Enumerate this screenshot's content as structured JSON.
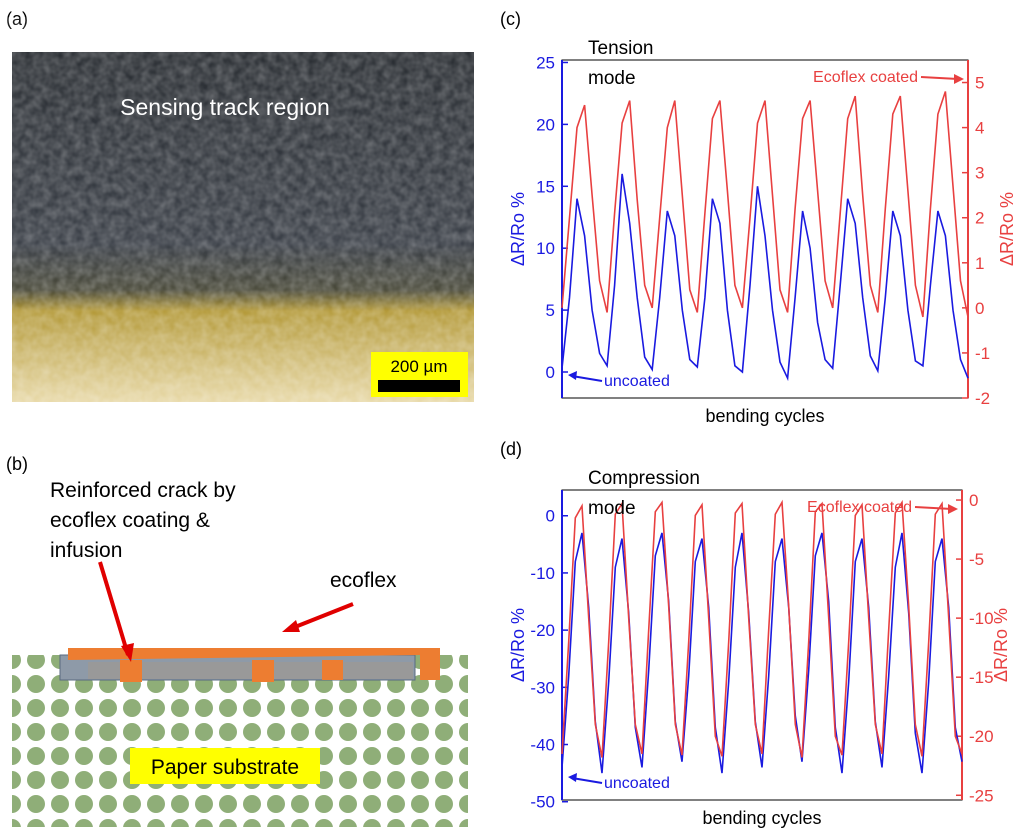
{
  "panels": {
    "a": {
      "label": "(a)",
      "caption": "Sensing track region",
      "scale_bar": "200 µm"
    },
    "b": {
      "label": "(b)",
      "annotation_lines": [
        "Reinforced crack by",
        "ecoflex coating &",
        "infusion"
      ],
      "ecoflex_label": "ecoflex",
      "substrate_label": "Paper substrate"
    }
  },
  "chart_data": [
    {
      "type": "line",
      "panel_label": "(c)",
      "annotation_lines": [
        "Tension",
        "mode"
      ],
      "xlabel": "bending cycles",
      "ylabel": "ΔR/Ro %",
      "y2label": "ΔR/Ro %",
      "ylim": [
        -2.1,
        25.2
      ],
      "yticks": [
        0,
        5,
        10,
        15,
        20,
        25
      ],
      "y2lim": [
        -2,
        5.5
      ],
      "y2ticks": [
        -2,
        -1,
        0,
        1,
        2,
        3,
        4,
        5
      ],
      "series": [
        {
          "name": "uncoated",
          "color": "#1a1ae0",
          "values": [
            0.3,
            6,
            14,
            11,
            5,
            1.5,
            0.5,
            7,
            16,
            12,
            6,
            1.2,
            0.2,
            6,
            13,
            11,
            5,
            1,
            0.4,
            6,
            14,
            12,
            5,
            0.5,
            0,
            7,
            15,
            11,
            5,
            0.8,
            -0.5,
            6,
            13,
            10,
            4,
            1,
            0.3,
            7,
            14,
            12,
            6,
            1.3,
            0.1,
            6,
            13,
            11,
            5,
            0.9,
            0.5,
            7,
            13,
            11,
            5,
            1,
            -0.5
          ]
        },
        {
          "name": "Ecoflex coated",
          "color": "#e84040",
          "axis": "y2",
          "values": [
            0.0,
            2.0,
            4.0,
            4.5,
            2.5,
            0.6,
            -0.1,
            2.1,
            4.1,
            4.6,
            2.4,
            0.5,
            0.0,
            2.0,
            4.0,
            4.6,
            2.5,
            0.4,
            -0.1,
            2.1,
            4.2,
            4.6,
            2.6,
            0.5,
            0.0,
            2.0,
            4.1,
            4.6,
            2.5,
            0.4,
            -0.1,
            2.2,
            4.2,
            4.6,
            2.6,
            0.6,
            0.0,
            2.1,
            4.2,
            4.7,
            2.5,
            0.5,
            -0.1,
            2.2,
            4.3,
            4.7,
            2.6,
            0.5,
            -0.2,
            2.2,
            4.3,
            4.8,
            2.7,
            0.6,
            -0.2
          ]
        }
      ]
    },
    {
      "type": "line",
      "panel_label": "(d)",
      "annotation_lines": [
        "Compression",
        "mode"
      ],
      "xlabel": "bending cycles",
      "ylabel": "ΔR/Ro %",
      "y2label": "ΔR/Ro %",
      "ylim": [
        -49.7,
        4.5
      ],
      "yticks": [
        0,
        -10,
        -20,
        -30,
        -40,
        -50
      ],
      "y2lim": [
        -25.4,
        0.85
      ],
      "y2ticks": [
        0,
        -5,
        -10,
        -15,
        -20,
        -25
      ],
      "series": [
        {
          "name": "uncoated",
          "color": "#1a1ae0",
          "values": [
            -44,
            -28,
            -8,
            -3,
            -16,
            -36,
            -45,
            -29,
            -9,
            -4,
            -17,
            -37,
            -44,
            -27,
            -7,
            -3,
            -15,
            -36,
            -43,
            -28,
            -8,
            -4,
            -16,
            -37,
            -45,
            -29,
            -9,
            -3,
            -17,
            -36,
            -44,
            -28,
            -8,
            -4,
            -16,
            -35,
            -43,
            -27,
            -7,
            -3,
            -15,
            -37,
            -45,
            -29,
            -8,
            -4,
            -16,
            -36,
            -44,
            -28,
            -9,
            -3,
            -17,
            -38,
            -45,
            -29,
            -8,
            -4,
            -16,
            -37,
            -43
          ]
        },
        {
          "name": "Ecoflex coated",
          "color": "#e84040",
          "axis": "y2",
          "values": [
            -21.5,
            -12,
            -1.5,
            -0.5,
            -10,
            -19,
            -21.8,
            -12,
            -1.2,
            -0.3,
            -10,
            -19,
            -21.5,
            -11,
            -1.0,
            -0.2,
            -9,
            -19,
            -21.6,
            -12,
            -1.3,
            -0.4,
            -10,
            -20,
            -21.7,
            -12,
            -1.1,
            -0.3,
            -10,
            -19,
            -21.5,
            -11,
            -1.2,
            -0.2,
            -9,
            -19,
            -21.8,
            -12,
            -1.0,
            -0.3,
            -10,
            -20,
            -21.6,
            -12,
            -1.3,
            -0.4,
            -10,
            -19,
            -21.5,
            -11,
            -1.1,
            -0.2,
            -9,
            -19,
            -21.7,
            -12,
            -1.2,
            -0.3,
            -10,
            -20,
            -21.5
          ]
        }
      ]
    }
  ]
}
